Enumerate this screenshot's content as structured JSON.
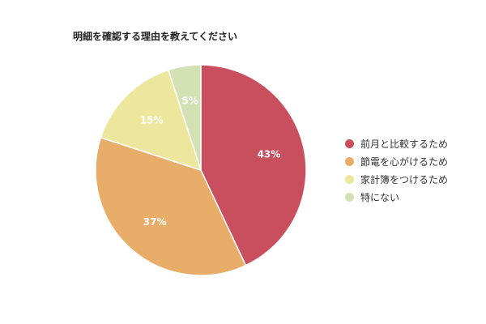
{
  "chart_data": {
    "type": "pie",
    "title": "明細を確認する理由を教えてください",
    "legend_position": "right",
    "slices": [
      {
        "label": "前月と比較するため",
        "value": 43,
        "display": "43%",
        "color": "#c94f5f"
      },
      {
        "label": "節電を心がけるため",
        "value": 37,
        "display": "37%",
        "color": "#e8ad69"
      },
      {
        "label": "家計簿をつけるため",
        "value": 15,
        "display": "15%",
        "color": "#ede79e"
      },
      {
        "label": "特にない",
        "value": 5,
        "display": "5%",
        "color": "#d3e1b4"
      }
    ]
  }
}
